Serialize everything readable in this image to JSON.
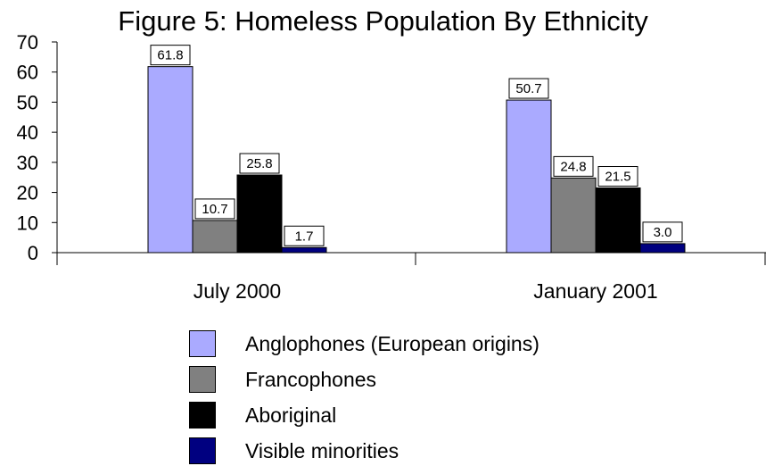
{
  "chart_data": {
    "type": "bar",
    "title": "Figure 5: Homeless Population By Ethnicity",
    "xlabel": "",
    "ylabel": "",
    "categories": [
      "July 2000",
      "January 2001"
    ],
    "series": [
      {
        "name": "Anglophones (European origins)",
        "values": [
          61.8,
          50.7
        ],
        "labels": [
          "61.8",
          "50.7"
        ],
        "color": "#aaaaff"
      },
      {
        "name": "Francophones",
        "values": [
          10.7,
          24.8
        ],
        "labels": [
          "10.7",
          "24.8"
        ],
        "color": "#808080"
      },
      {
        "name": "Aboriginal",
        "values": [
          25.8,
          21.5
        ],
        "labels": [
          "25.8",
          "21.5"
        ],
        "color": "#000000"
      },
      {
        "name": "Visible minorities",
        "values": [
          1.7,
          3.0
        ],
        "labels": [
          "1.7",
          "3.0"
        ],
        "color": "#000080"
      }
    ],
    "ylim": [
      0,
      70
    ],
    "yticks": [
      "0",
      "10",
      "20",
      "30",
      "40",
      "50",
      "60",
      "70"
    ],
    "grid": false,
    "legend_position": "bottom"
  }
}
